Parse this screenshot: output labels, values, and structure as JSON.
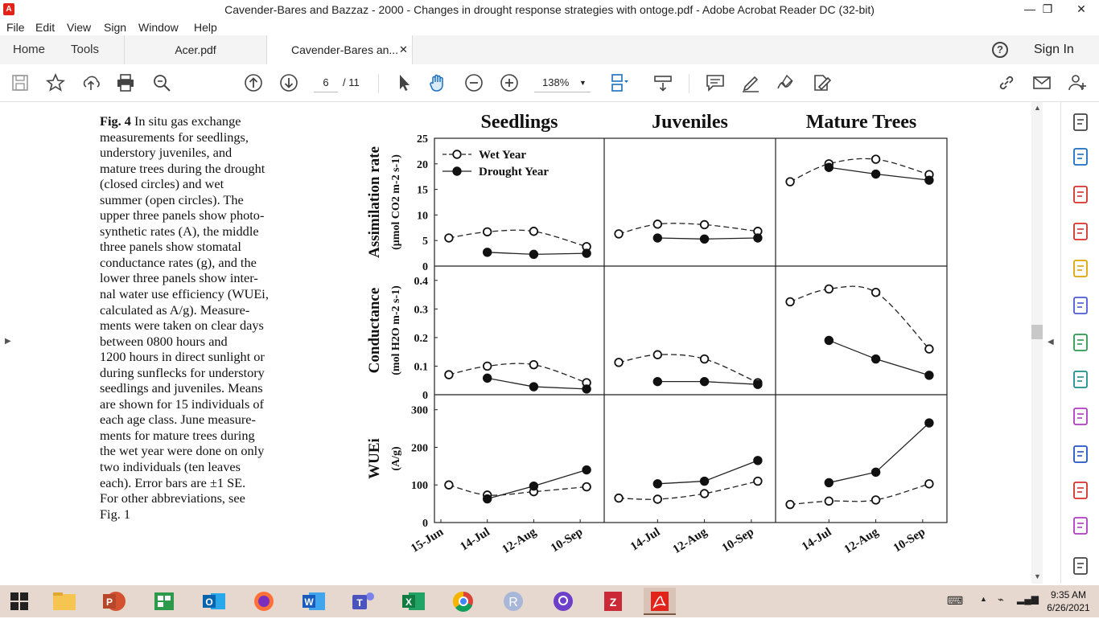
{
  "window": {
    "title": "Cavender-Bares and Bazzaz - 2000 - Changes in drought response strategies with ontoge.pdf - Adobe Acrobat Reader DC (32-bit)",
    "controls": [
      "minimize",
      "restore",
      "close"
    ]
  },
  "menu": [
    "File",
    "Edit",
    "View",
    "Sign",
    "Window",
    "Help"
  ],
  "tabs": {
    "nav": [
      "Home",
      "Tools"
    ],
    "documents": [
      {
        "label": "Acer.pdf",
        "active": false
      },
      {
        "label": "Cavender-Bares an...",
        "active": true,
        "close": "✕"
      }
    ],
    "sign_in": "Sign In"
  },
  "toolbar": {
    "page_current": "6",
    "page_total": "/ 11",
    "zoom": "138%",
    "icons": [
      "save-icon",
      "bookmark-star-icon",
      "share-upload-icon",
      "print-icon",
      "find-zoom-icon",
      "page-up-icon",
      "page-down-icon",
      "select-cursor-icon",
      "hand-tool-icon",
      "zoom-out-icon",
      "zoom-in-icon",
      "zoom-dropdown-icon",
      "fit-page-icon",
      "scroll-mode-icon",
      "comment-icon",
      "highlight-pen-icon",
      "fill-sign-icon",
      "edit-sign-icon",
      "link-icon",
      "email-icon",
      "add-user-icon"
    ]
  },
  "right_panel_icons": [
    "zoom-tool-icon",
    "export-pdf-icon",
    "organize-pages-icon",
    "create-pdf-icon",
    "comment-panel-icon",
    "export-icon",
    "compress-icon",
    "share-icon",
    "fill-sign-panel-icon",
    "protect-icon",
    "more-tools-icon",
    "edit-pdf-icon",
    "collapse-icon"
  ],
  "caption": {
    "label": "Fig. 4",
    "lines": [
      "In situ gas exchange",
      "measurements for seedlings,",
      "understory juveniles, and",
      "mature trees during the drought",
      "(closed circles) and wet",
      "summer (open circles). The",
      "upper three panels show photo-",
      "synthetic rates (A), the middle",
      "three panels show stomatal",
      "conductance rates (g), and the",
      "lower three panels show inter-",
      "nal water use efficiency (WUEi,",
      "calculated as A/g). Measure-",
      "ments were taken on clear days",
      "between 0800 hours and",
      "1200 hours in direct sunlight or",
      "during sunflecks for understory",
      "seedlings and juveniles. Means",
      "are shown for 15 individuals of",
      "each age class. June measure-",
      "ments for mature trees during",
      "the wet year were done on only",
      "two individuals (ten leaves",
      "each). Error bars are ±1 SE.",
      "For other abbreviations, see",
      "Fig. 1"
    ]
  },
  "chart_data": {
    "type": "scatter",
    "columns": [
      "Seedlings",
      "Juveniles",
      "Mature Trees"
    ],
    "legend": [
      "Wet Year",
      "Drought Year"
    ],
    "x_tick_labels": [
      "15-Jun",
      "14-Jul",
      "12-Aug",
      "10-Sep"
    ],
    "rows": [
      {
        "ylabel": "Assimilation rate",
        "yunit": "(μmol CO2 m-2 s-1)",
        "ylim": [
          0,
          25
        ],
        "yticks": [
          "0",
          "5",
          "10",
          "15",
          "20",
          "25"
        ],
        "panels": [
          {
            "wet": [
              [
                "15-Jun+5",
                5.5
              ],
              [
                "14-Jul",
                6.7
              ],
              [
                "12-Aug",
                6.8
              ],
              [
                "10-Sep+4",
                3.8
              ]
            ],
            "drought": [
              [
                "14-Jul",
                2.7
              ],
              [
                "12-Aug",
                2.3
              ],
              [
                "10-Sep+4",
                2.5
              ]
            ]
          },
          {
            "wet": [
              [
                "15-Jun+5",
                6.3
              ],
              [
                "14-Jul",
                8.2
              ],
              [
                "12-Aug",
                8.1
              ],
              [
                "10-Sep+4",
                6.8
              ]
            ],
            "drought": [
              [
                "14-Jul",
                5.5
              ],
              [
                "12-Aug",
                5.3
              ],
              [
                "10-Sep+4",
                5.5
              ]
            ]
          },
          {
            "wet": [
              [
                "15-Jun+5",
                16.5
              ],
              [
                "14-Jul",
                20.0
              ],
              [
                "12-Aug",
                20.9
              ],
              [
                "10-Sep+4",
                17.9
              ]
            ],
            "drought": [
              [
                "14-Jul",
                19.3
              ],
              [
                "12-Aug",
                18.0
              ],
              [
                "10-Sep+4",
                16.8
              ]
            ]
          }
        ]
      },
      {
        "ylabel": "Conductance",
        "yunit": "(mol H2O m-2 s-1)",
        "ylim": [
          0,
          0.45
        ],
        "yticks": [
          "0",
          "0.1",
          "0.2",
          "0.3",
          "0.4"
        ],
        "panels": [
          {
            "wet": [
              [
                "15-Jun+5",
                0.07
              ],
              [
                "14-Jul",
                0.1
              ],
              [
                "12-Aug",
                0.105
              ],
              [
                "10-Sep+4",
                0.042
              ]
            ],
            "drought": [
              [
                "14-Jul",
                0.058
              ],
              [
                "12-Aug",
                0.028
              ],
              [
                "10-Sep+4",
                0.02
              ]
            ]
          },
          {
            "wet": [
              [
                "15-Jun+5",
                0.113
              ],
              [
                "14-Jul",
                0.14
              ],
              [
                "12-Aug",
                0.125
              ],
              [
                "10-Sep+4",
                0.042
              ]
            ],
            "drought": [
              [
                "14-Jul",
                0.046
              ],
              [
                "12-Aug",
                0.046
              ],
              [
                "10-Sep+4",
                0.036
              ]
            ]
          },
          {
            "wet": [
              [
                "15-Jun+5",
                0.325
              ],
              [
                "14-Jul",
                0.37
              ],
              [
                "12-Aug",
                0.358
              ],
              [
                "10-Sep+4",
                0.16
              ]
            ],
            "drought": [
              [
                "14-Jul",
                0.19
              ],
              [
                "12-Aug",
                0.125
              ],
              [
                "10-Sep+4",
                0.068
              ]
            ]
          }
        ]
      },
      {
        "ylabel": "WUEi",
        "yunit": "(A/g)",
        "ylim": [
          0,
          340
        ],
        "yticks": [
          "0",
          "100",
          "200",
          "300"
        ],
        "panels": [
          {
            "wet": [
              [
                "15-Jun+5",
                100
              ],
              [
                "14-Jul",
                73
              ],
              [
                "12-Aug",
                82
              ],
              [
                "10-Sep+4",
                95
              ]
            ],
            "drought": [
              [
                "14-Jul",
                63
              ],
              [
                "12-Aug",
                97
              ],
              [
                "10-Sep+4",
                140
              ]
            ]
          },
          {
            "wet": [
              [
                "15-Jun+5",
                65
              ],
              [
                "14-Jul",
                62
              ],
              [
                "12-Aug",
                77
              ],
              [
                "10-Sep+4",
                110
              ]
            ],
            "drought": [
              [
                "14-Jul",
                103
              ],
              [
                "12-Aug",
                110
              ],
              [
                "10-Sep+4",
                165
              ]
            ]
          },
          {
            "wet": [
              [
                "15-Jun+5",
                48
              ],
              [
                "14-Jul",
                57
              ],
              [
                "12-Aug",
                60
              ],
              [
                "10-Sep+4",
                103
              ]
            ],
            "drought": [
              [
                "14-Jul",
                106
              ],
              [
                "12-Aug",
                134
              ],
              [
                "10-Sep+4",
                265
              ]
            ]
          }
        ]
      }
    ],
    "grid": false,
    "legend_position": "top-left"
  },
  "taskbar": {
    "apps": [
      "windows-start-icon",
      "file-explorer-icon",
      "powerpoint-icon",
      "excel-green-icon",
      "outlook-icon",
      "firefox-icon",
      "word-icon",
      "teams-icon",
      "excel-icon",
      "chrome-icon",
      "r-icon",
      "github-icon",
      "zotero-icon",
      "acrobat-icon"
    ],
    "time": "9:35 AM",
    "date": "6/26/2021"
  }
}
